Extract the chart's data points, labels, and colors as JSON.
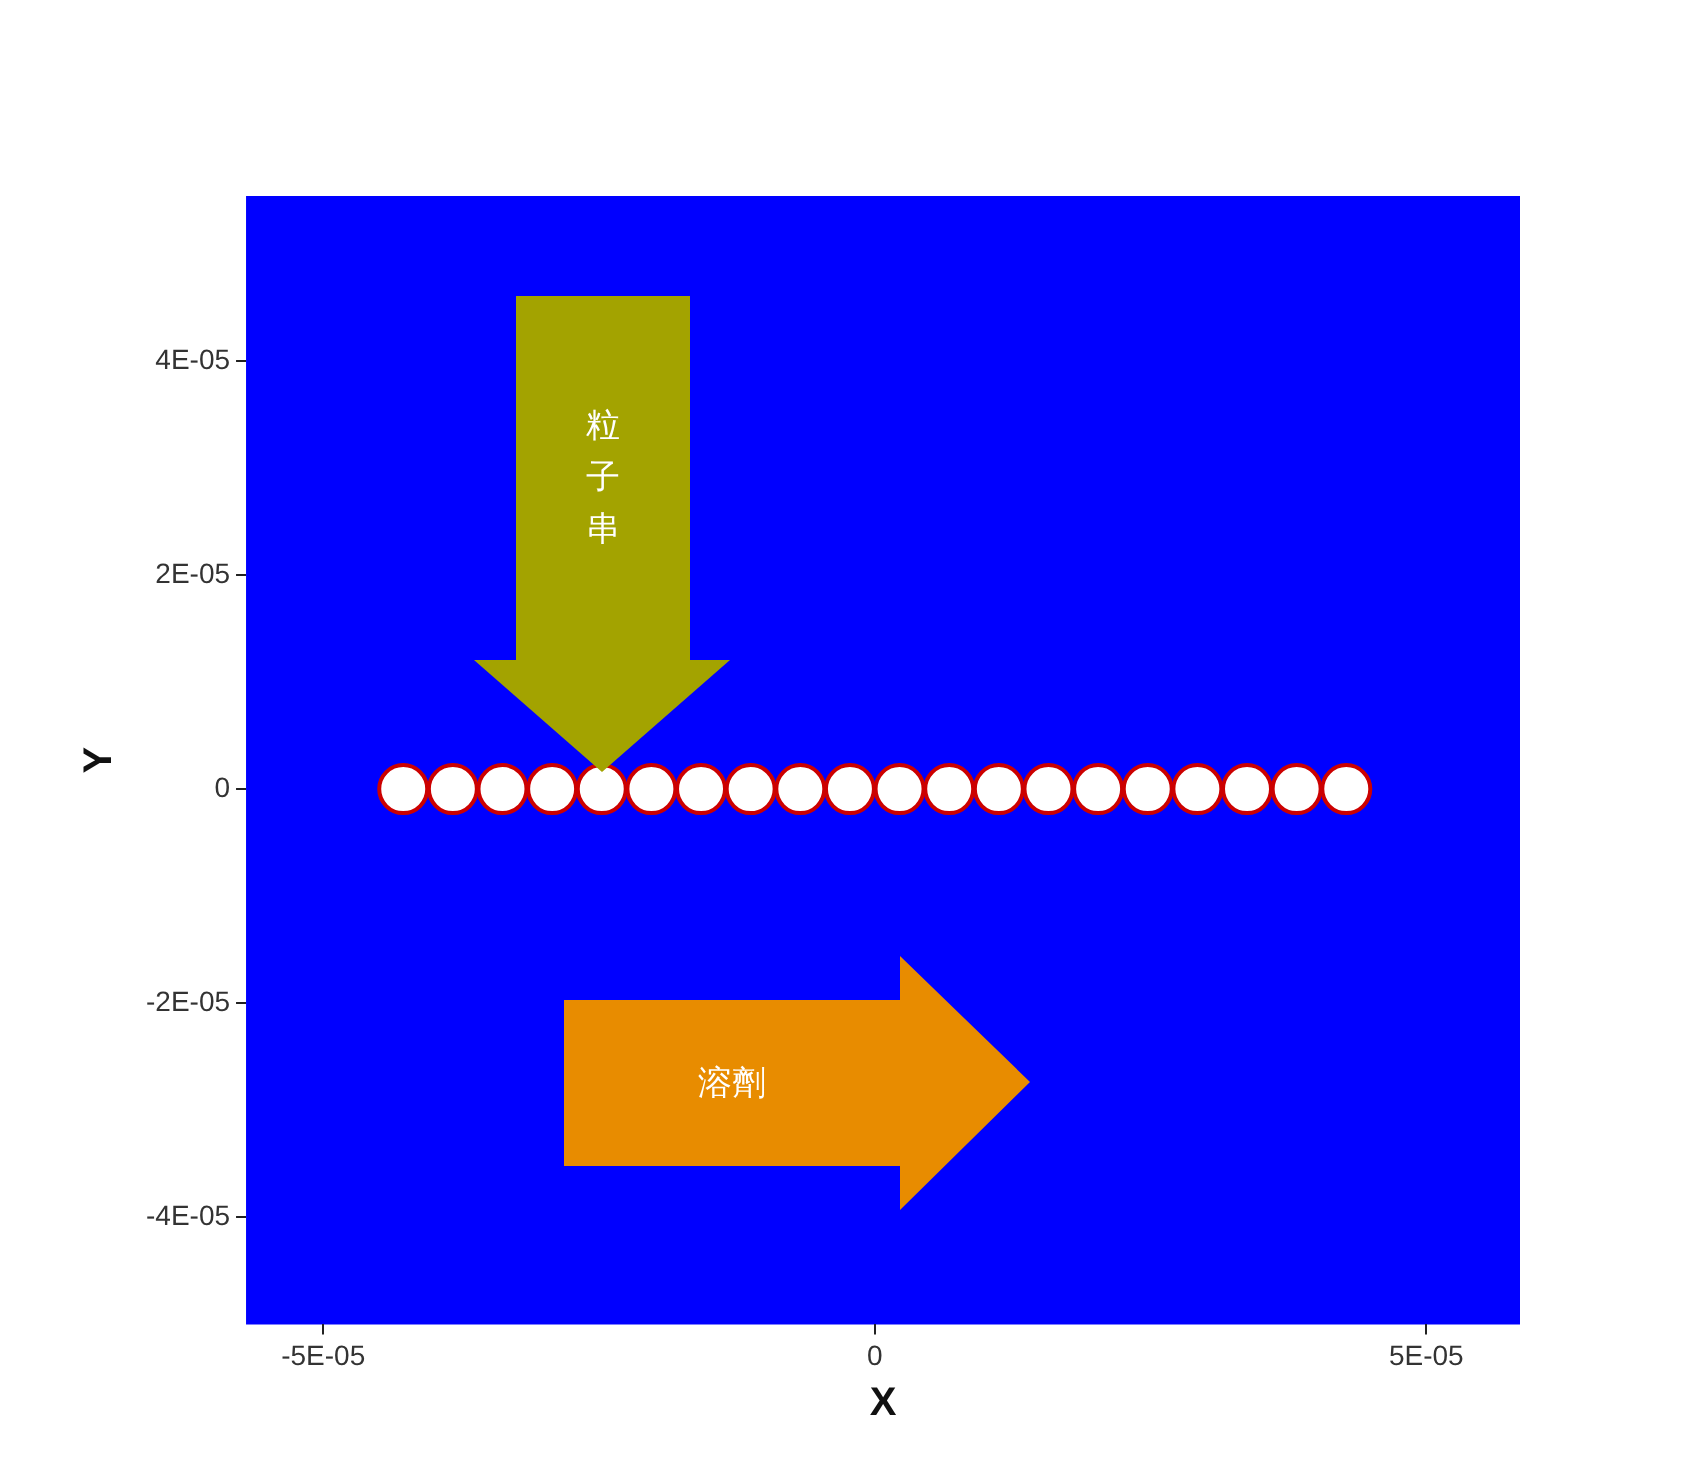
{
  "chart_data": {
    "type": "scatter",
    "xlabel": "X",
    "ylabel": "Y",
    "annotations": [
      "粒子串",
      "溶劑"
    ],
    "x": [
      -4.275e-05,
      -3.825e-05,
      -3.375e-05,
      -2.925e-05,
      -2.475e-05,
      -2.025e-05,
      -1.575e-05,
      -1.125e-05,
      -6.75e-06,
      -2.25e-06,
      2.25e-06,
      6.75e-06,
      1.125e-05,
      1.575e-05,
      2.025e-05,
      2.475e-05,
      2.925e-05,
      3.375e-05,
      3.825e-05,
      4.275e-05
    ],
    "series": [
      {
        "color": "#ffffff",
        "values": [
          0,
          0,
          0,
          0,
          0,
          0,
          0,
          0,
          0,
          0,
          0,
          0,
          0,
          0,
          0,
          0,
          0,
          0,
          0,
          0
        ]
      }
    ],
    "marker": "circle",
    "xlim": [
      -5.7e-05,
      5.85e-05
    ],
    "ylim": [
      -5e-05,
      5.54e-05
    ],
    "xticks": [
      {
        "value": -5e-05,
        "label": "-5E-05"
      },
      {
        "value": 0,
        "label": "0"
      },
      {
        "value": 5e-05,
        "label": "5E-05"
      }
    ],
    "yticks": [
      {
        "value": -4e-05,
        "label": "-4E-05"
      },
      {
        "value": -2e-05,
        "label": "-2E-05"
      },
      {
        "value": 0,
        "label": "0"
      },
      {
        "value": 2e-05,
        "label": "2E-05"
      },
      {
        "value": 4e-05,
        "label": "4E-05"
      }
    ],
    "grid": false,
    "legend": false
  }
}
